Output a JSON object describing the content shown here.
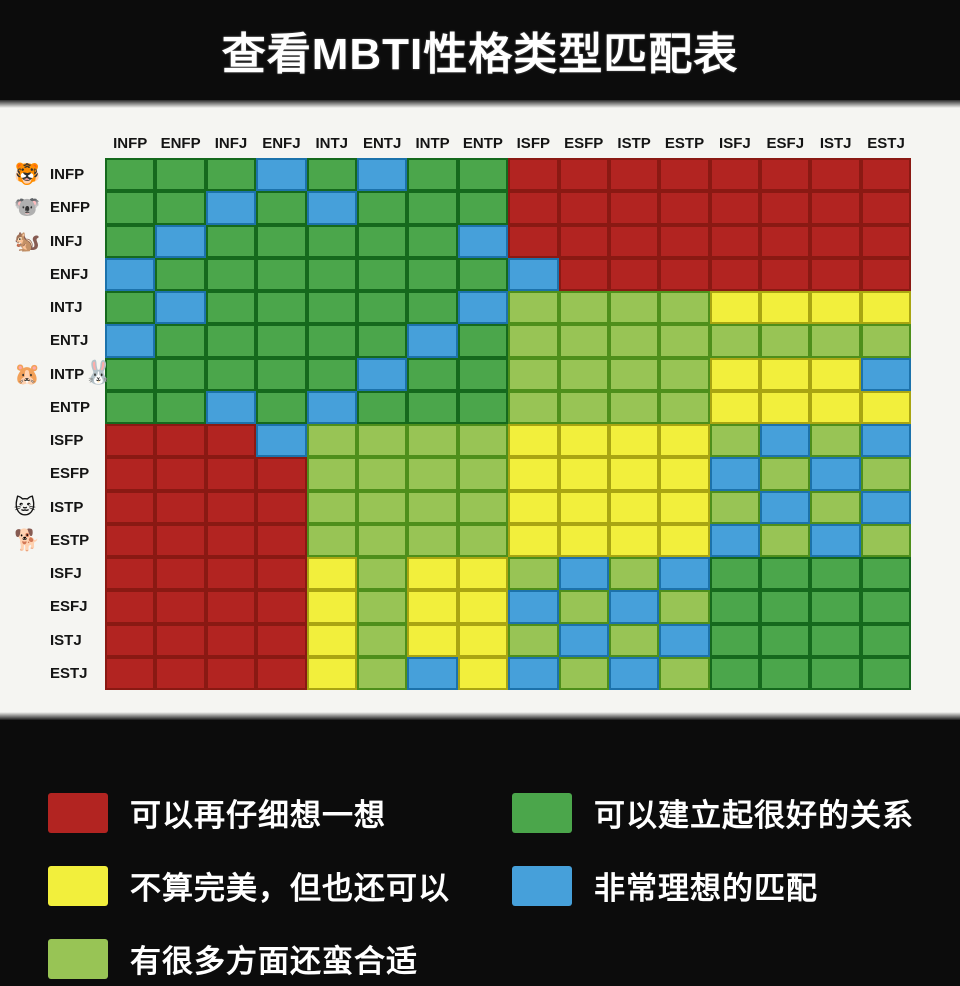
{
  "title": "查看MBTI性格类型匹配表",
  "legend": {
    "items": [
      {
        "key": "R",
        "color": "#b22421",
        "label": "可以再仔细想一想"
      },
      {
        "key": "G",
        "color": "#4ba64b",
        "label": "可以建立起很好的关系"
      },
      {
        "key": "Y",
        "color": "#f2ef3c",
        "label": "不算完美，但也还可以"
      },
      {
        "key": "B",
        "color": "#46a0da",
        "label": "非常理想的匹配"
      },
      {
        "key": "g",
        "color": "#98c455",
        "label": "有很多方面还蛮合适"
      }
    ]
  },
  "colors": {
    "R": {
      "fill": "#b22421",
      "border": "#8a1913"
    },
    "G": {
      "fill": "#4ba64b",
      "border": "#15691d"
    },
    "g": {
      "fill": "#98c455",
      "border": "#4e8f1b"
    },
    "Y": {
      "fill": "#f2ef3c",
      "border": "#a9a512"
    },
    "B": {
      "fill": "#46a0da",
      "border": "#1c72ab"
    }
  },
  "chart_data": {
    "type": "heatmap",
    "title": "查看MBTI性格类型匹配表",
    "x_labels": [
      "INFP",
      "ENFP",
      "INFJ",
      "ENFJ",
      "INTJ",
      "ENTJ",
      "INTP",
      "ENTP",
      "ISFP",
      "ESFP",
      "ISTP",
      "ESTP",
      "ISFJ",
      "ESFJ",
      "ISTJ",
      "ESTJ"
    ],
    "y_labels": [
      "INFP",
      "ENFP",
      "INFJ",
      "ENFJ",
      "INTJ",
      "ENTJ",
      "INTP",
      "ENTP",
      "ISFP",
      "ESFP",
      "ISTP",
      "ESTP",
      "ISFJ",
      "ESFJ",
      "ISTJ",
      "ESTJ"
    ],
    "categories": {
      "R": "可以再仔细想一想",
      "Y": "不算完美，但也还可以",
      "g": "有很多方面还蛮合适",
      "G": "可以建立起很好的关系",
      "B": "非常理想的匹配"
    },
    "rows": [
      {
        "label": "INFP",
        "emoji": "🐯",
        "emoji_right": "",
        "cells": [
          "G",
          "G",
          "G",
          "B",
          "G",
          "B",
          "G",
          "G",
          "R",
          "R",
          "R",
          "R",
          "R",
          "R",
          "R",
          "R"
        ]
      },
      {
        "label": "ENFP",
        "emoji": "🐨",
        "emoji_right": "",
        "cells": [
          "G",
          "G",
          "B",
          "G",
          "B",
          "G",
          "G",
          "G",
          "R",
          "R",
          "R",
          "R",
          "R",
          "R",
          "R",
          "R"
        ]
      },
      {
        "label": "INFJ",
        "emoji": "🐿️",
        "emoji_right": "",
        "cells": [
          "G",
          "B",
          "G",
          "G",
          "G",
          "G",
          "G",
          "B",
          "R",
          "R",
          "R",
          "R",
          "R",
          "R",
          "R",
          "R"
        ]
      },
      {
        "label": "ENFJ",
        "emoji": "",
        "emoji_right": "",
        "cells": [
          "B",
          "G",
          "G",
          "G",
          "G",
          "G",
          "G",
          "G",
          "B",
          "R",
          "R",
          "R",
          "R",
          "R",
          "R",
          "R"
        ]
      },
      {
        "label": "INTJ",
        "emoji": "",
        "emoji_right": "",
        "cells": [
          "G",
          "B",
          "G",
          "G",
          "G",
          "G",
          "G",
          "B",
          "g",
          "g",
          "g",
          "g",
          "Y",
          "Y",
          "Y",
          "Y"
        ]
      },
      {
        "label": "ENTJ",
        "emoji": "",
        "emoji_right": "",
        "cells": [
          "B",
          "G",
          "G",
          "G",
          "G",
          "G",
          "B",
          "G",
          "g",
          "g",
          "g",
          "g",
          "g",
          "g",
          "g",
          "g"
        ]
      },
      {
        "label": "INTP",
        "emoji": "🐹",
        "emoji_right": "🐰",
        "cells": [
          "G",
          "G",
          "G",
          "G",
          "G",
          "B",
          "G",
          "G",
          "g",
          "g",
          "g",
          "g",
          "Y",
          "Y",
          "Y",
          "B"
        ]
      },
      {
        "label": "ENTP",
        "emoji": "",
        "emoji_right": "",
        "cells": [
          "G",
          "G",
          "B",
          "G",
          "B",
          "G",
          "G",
          "G",
          "g",
          "g",
          "g",
          "g",
          "Y",
          "Y",
          "Y",
          "Y"
        ]
      },
      {
        "label": "ISFP",
        "emoji": "",
        "emoji_right": "",
        "cells": [
          "R",
          "R",
          "R",
          "B",
          "g",
          "g",
          "g",
          "g",
          "Y",
          "Y",
          "Y",
          "Y",
          "g",
          "B",
          "g",
          "B"
        ]
      },
      {
        "label": "ESFP",
        "emoji": "",
        "emoji_right": "",
        "cells": [
          "R",
          "R",
          "R",
          "R",
          "g",
          "g",
          "g",
          "g",
          "Y",
          "Y",
          "Y",
          "Y",
          "B",
          "g",
          "B",
          "g"
        ]
      },
      {
        "label": "ISTP",
        "emoji": "🐱",
        "emoji_right": "",
        "cells": [
          "R",
          "R",
          "R",
          "R",
          "g",
          "g",
          "g",
          "g",
          "Y",
          "Y",
          "Y",
          "Y",
          "g",
          "B",
          "g",
          "B"
        ]
      },
      {
        "label": "ESTP",
        "emoji": "🐕",
        "emoji_right": "",
        "cells": [
          "R",
          "R",
          "R",
          "R",
          "g",
          "g",
          "g",
          "g",
          "Y",
          "Y",
          "Y",
          "Y",
          "B",
          "g",
          "B",
          "g"
        ]
      },
      {
        "label": "ISFJ",
        "emoji": "",
        "emoji_right": "",
        "cells": [
          "R",
          "R",
          "R",
          "R",
          "Y",
          "g",
          "Y",
          "Y",
          "g",
          "B",
          "g",
          "B",
          "G",
          "G",
          "G",
          "G"
        ]
      },
      {
        "label": "ESFJ",
        "emoji": "",
        "emoji_right": "",
        "cells": [
          "R",
          "R",
          "R",
          "R",
          "Y",
          "g",
          "Y",
          "Y",
          "B",
          "g",
          "B",
          "g",
          "G",
          "G",
          "G",
          "G"
        ]
      },
      {
        "label": "ISTJ",
        "emoji": "",
        "emoji_right": "",
        "cells": [
          "R",
          "R",
          "R",
          "R",
          "Y",
          "g",
          "Y",
          "Y",
          "g",
          "B",
          "g",
          "B",
          "G",
          "G",
          "G",
          "G"
        ]
      },
      {
        "label": "ESTJ",
        "emoji": "",
        "emoji_right": "",
        "cells": [
          "R",
          "R",
          "R",
          "R",
          "Y",
          "g",
          "B",
          "Y",
          "B",
          "g",
          "B",
          "g",
          "G",
          "G",
          "G",
          "G"
        ]
      }
    ]
  }
}
